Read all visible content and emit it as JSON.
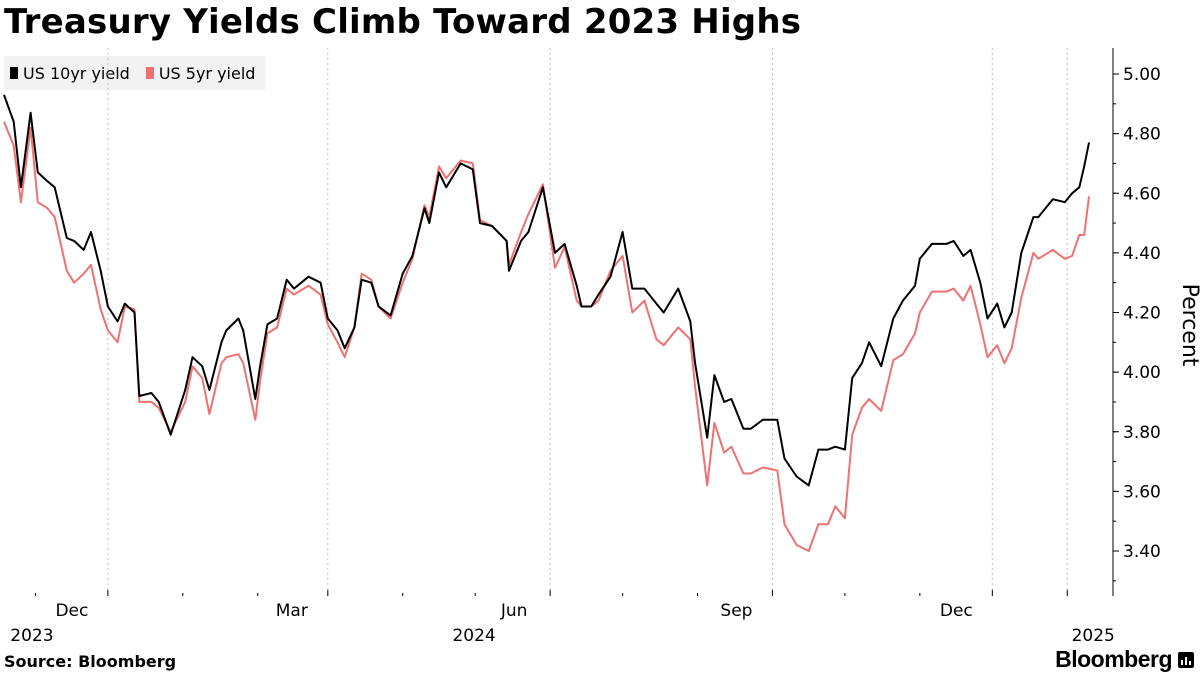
{
  "title": "Treasury Yields Climb Toward 2023 Highs",
  "source": "Source: Bloomberg",
  "brand": "Bloomberg",
  "brand_icon": "bloomberg-chart-icon",
  "colors": {
    "series_10yr": "#000000",
    "series_5yr": "#f07171",
    "grid": "#bfbfbf",
    "legend_bg": "#f2f2f2"
  },
  "chart_data": {
    "type": "line",
    "title": "Treasury Yields Climb Toward 2023 Highs",
    "xlabel": "",
    "ylabel": "Percent",
    "x_range": [
      "2023-10-19",
      "2025-01-10"
    ],
    "ylim": [
      3.25,
      5.1
    ],
    "y_ticks": [
      "5.00",
      "4.80",
      "4.60",
      "4.40",
      "4.20",
      "4.00",
      "3.80",
      "3.60",
      "3.40"
    ],
    "x_ticks": [
      {
        "date": "2023-12-01",
        "label": "Dec",
        "year": "2023"
      },
      {
        "date": "2024-03-01",
        "label": "Mar",
        "year": ""
      },
      {
        "date": "2024-06-01",
        "label": "Jun",
        "year": "2024"
      },
      {
        "date": "2024-09-01",
        "label": "Sep",
        "year": ""
      },
      {
        "date": "2024-12-01",
        "label": "Dec",
        "year": ""
      },
      {
        "date": "2025-01-01",
        "label": "",
        "year": "2025"
      }
    ],
    "grid": "vertical dotted",
    "legend": "top-left",
    "series": [
      {
        "name": "US 10yr yield",
        "points": [
          [
            "2023-10-19",
            4.93
          ],
          [
            "2023-10-23",
            4.84
          ],
          [
            "2023-10-26",
            4.62
          ],
          [
            "2023-10-30",
            4.87
          ],
          [
            "2023-11-02",
            4.67
          ],
          [
            "2023-11-06",
            4.64
          ],
          [
            "2023-11-09",
            4.62
          ],
          [
            "2023-11-14",
            4.45
          ],
          [
            "2023-11-17",
            4.44
          ],
          [
            "2023-11-21",
            4.41
          ],
          [
            "2023-11-24",
            4.47
          ],
          [
            "2023-11-28",
            4.34
          ],
          [
            "2023-12-01",
            4.22
          ],
          [
            "2023-12-05",
            4.17
          ],
          [
            "2023-12-08",
            4.23
          ],
          [
            "2023-12-12",
            4.2
          ],
          [
            "2023-12-14",
            3.92
          ],
          [
            "2023-12-19",
            3.93
          ],
          [
            "2023-12-22",
            3.9
          ],
          [
            "2023-12-27",
            3.79
          ],
          [
            "2024-01-02",
            3.94
          ],
          [
            "2024-01-05",
            4.05
          ],
          [
            "2024-01-09",
            4.02
          ],
          [
            "2024-01-12",
            3.94
          ],
          [
            "2024-01-17",
            4.1
          ],
          [
            "2024-01-19",
            4.14
          ],
          [
            "2024-01-24",
            4.18
          ],
          [
            "2024-01-26",
            4.14
          ],
          [
            "2024-01-31",
            3.91
          ],
          [
            "2024-02-02",
            4.02
          ],
          [
            "2024-02-05",
            4.16
          ],
          [
            "2024-02-09",
            4.18
          ],
          [
            "2024-02-13",
            4.31
          ],
          [
            "2024-02-16",
            4.28
          ],
          [
            "2024-02-22",
            4.32
          ],
          [
            "2024-02-27",
            4.3
          ],
          [
            "2024-03-01",
            4.18
          ],
          [
            "2024-03-05",
            4.14
          ],
          [
            "2024-03-08",
            4.08
          ],
          [
            "2024-03-12",
            4.15
          ],
          [
            "2024-03-15",
            4.31
          ],
          [
            "2024-03-19",
            4.3
          ],
          [
            "2024-03-22",
            4.22
          ],
          [
            "2024-03-27",
            4.19
          ],
          [
            "2024-04-01",
            4.33
          ],
          [
            "2024-04-05",
            4.39
          ],
          [
            "2024-04-10",
            4.55
          ],
          [
            "2024-04-12",
            4.5
          ],
          [
            "2024-04-16",
            4.67
          ],
          [
            "2024-04-19",
            4.62
          ],
          [
            "2024-04-25",
            4.7
          ],
          [
            "2024-04-30",
            4.68
          ],
          [
            "2024-05-03",
            4.5
          ],
          [
            "2024-05-08",
            4.49
          ],
          [
            "2024-05-14",
            4.44
          ],
          [
            "2024-05-15",
            4.34
          ],
          [
            "2024-05-20",
            4.44
          ],
          [
            "2024-05-23",
            4.47
          ],
          [
            "2024-05-29",
            4.62
          ],
          [
            "2024-06-03",
            4.4
          ],
          [
            "2024-06-07",
            4.43
          ],
          [
            "2024-06-12",
            4.29
          ],
          [
            "2024-06-14",
            4.22
          ],
          [
            "2024-06-18",
            4.22
          ],
          [
            "2024-06-21",
            4.26
          ],
          [
            "2024-06-26",
            4.32
          ],
          [
            "2024-07-01",
            4.47
          ],
          [
            "2024-07-05",
            4.28
          ],
          [
            "2024-07-10",
            4.28
          ],
          [
            "2024-07-15",
            4.23
          ],
          [
            "2024-07-18",
            4.2
          ],
          [
            "2024-07-24",
            4.28
          ],
          [
            "2024-07-29",
            4.17
          ],
          [
            "2024-07-31",
            4.03
          ],
          [
            "2024-08-05",
            3.78
          ],
          [
            "2024-08-08",
            3.99
          ],
          [
            "2024-08-12",
            3.9
          ],
          [
            "2024-08-15",
            3.91
          ],
          [
            "2024-08-20",
            3.81
          ],
          [
            "2024-08-23",
            3.81
          ],
          [
            "2024-08-28",
            3.84
          ],
          [
            "2024-09-03",
            3.84
          ],
          [
            "2024-09-06",
            3.71
          ],
          [
            "2024-09-11",
            3.65
          ],
          [
            "2024-09-16",
            3.62
          ],
          [
            "2024-09-20",
            3.74
          ],
          [
            "2024-09-24",
            3.74
          ],
          [
            "2024-09-27",
            3.75
          ],
          [
            "2024-10-01",
            3.74
          ],
          [
            "2024-10-04",
            3.98
          ],
          [
            "2024-10-08",
            4.03
          ],
          [
            "2024-10-11",
            4.1
          ],
          [
            "2024-10-16",
            4.02
          ],
          [
            "2024-10-21",
            4.18
          ],
          [
            "2024-10-25",
            4.24
          ],
          [
            "2024-10-30",
            4.29
          ],
          [
            "2024-11-01",
            4.38
          ],
          [
            "2024-11-06",
            4.43
          ],
          [
            "2024-11-12",
            4.43
          ],
          [
            "2024-11-15",
            4.44
          ],
          [
            "2024-11-19",
            4.39
          ],
          [
            "2024-11-22",
            4.41
          ],
          [
            "2024-11-26",
            4.3
          ],
          [
            "2024-11-29",
            4.18
          ],
          [
            "2024-12-03",
            4.23
          ],
          [
            "2024-12-06",
            4.15
          ],
          [
            "2024-12-09",
            4.2
          ],
          [
            "2024-12-13",
            4.4
          ],
          [
            "2024-12-18",
            4.52
          ],
          [
            "2024-12-20",
            4.52
          ],
          [
            "2024-12-26",
            4.58
          ],
          [
            "2024-12-31",
            4.57
          ],
          [
            "2025-01-03",
            4.6
          ],
          [
            "2025-01-06",
            4.62
          ],
          [
            "2025-01-08",
            4.69
          ],
          [
            "2025-01-10",
            4.77
          ]
        ]
      },
      {
        "name": "US 5yr yield",
        "points": [
          [
            "2023-10-19",
            4.84
          ],
          [
            "2023-10-23",
            4.76
          ],
          [
            "2023-10-26",
            4.57
          ],
          [
            "2023-10-30",
            4.82
          ],
          [
            "2023-11-02",
            4.57
          ],
          [
            "2023-11-06",
            4.55
          ],
          [
            "2023-11-09",
            4.52
          ],
          [
            "2023-11-14",
            4.34
          ],
          [
            "2023-11-17",
            4.3
          ],
          [
            "2023-11-21",
            4.33
          ],
          [
            "2023-11-24",
            4.36
          ],
          [
            "2023-11-28",
            4.21
          ],
          [
            "2023-12-01",
            4.14
          ],
          [
            "2023-12-05",
            4.1
          ],
          [
            "2023-12-08",
            4.22
          ],
          [
            "2023-12-12",
            4.21
          ],
          [
            "2023-12-14",
            3.9
          ],
          [
            "2023-12-19",
            3.9
          ],
          [
            "2023-12-22",
            3.88
          ],
          [
            "2023-12-27",
            3.8
          ],
          [
            "2024-01-02",
            3.9
          ],
          [
            "2024-01-05",
            4.02
          ],
          [
            "2024-01-09",
            3.98
          ],
          [
            "2024-01-12",
            3.86
          ],
          [
            "2024-01-17",
            4.03
          ],
          [
            "2024-01-19",
            4.05
          ],
          [
            "2024-01-24",
            4.06
          ],
          [
            "2024-01-26",
            4.03
          ],
          [
            "2024-01-31",
            3.84
          ],
          [
            "2024-02-02",
            3.97
          ],
          [
            "2024-02-05",
            4.13
          ],
          [
            "2024-02-09",
            4.15
          ],
          [
            "2024-02-13",
            4.28
          ],
          [
            "2024-02-16",
            4.26
          ],
          [
            "2024-02-22",
            4.29
          ],
          [
            "2024-02-27",
            4.26
          ],
          [
            "2024-03-01",
            4.16
          ],
          [
            "2024-03-05",
            4.1
          ],
          [
            "2024-03-08",
            4.05
          ],
          [
            "2024-03-12",
            4.15
          ],
          [
            "2024-03-15",
            4.33
          ],
          [
            "2024-03-19",
            4.31
          ],
          [
            "2024-03-22",
            4.22
          ],
          [
            "2024-03-27",
            4.18
          ],
          [
            "2024-04-01",
            4.3
          ],
          [
            "2024-04-05",
            4.38
          ],
          [
            "2024-04-10",
            4.56
          ],
          [
            "2024-04-12",
            4.52
          ],
          [
            "2024-04-16",
            4.69
          ],
          [
            "2024-04-19",
            4.65
          ],
          [
            "2024-04-25",
            4.71
          ],
          [
            "2024-04-30",
            4.7
          ],
          [
            "2024-05-03",
            4.51
          ],
          [
            "2024-05-08",
            4.49
          ],
          [
            "2024-05-14",
            4.44
          ],
          [
            "2024-05-15",
            4.36
          ],
          [
            "2024-05-20",
            4.47
          ],
          [
            "2024-05-23",
            4.53
          ],
          [
            "2024-05-29",
            4.63
          ],
          [
            "2024-06-03",
            4.35
          ],
          [
            "2024-06-07",
            4.42
          ],
          [
            "2024-06-12",
            4.24
          ],
          [
            "2024-06-14",
            4.22
          ],
          [
            "2024-06-18",
            4.22
          ],
          [
            "2024-06-21",
            4.24
          ],
          [
            "2024-06-26",
            4.34
          ],
          [
            "2024-07-01",
            4.39
          ],
          [
            "2024-07-05",
            4.2
          ],
          [
            "2024-07-10",
            4.24
          ],
          [
            "2024-07-15",
            4.11
          ],
          [
            "2024-07-18",
            4.09
          ],
          [
            "2024-07-24",
            4.15
          ],
          [
            "2024-07-29",
            4.11
          ],
          [
            "2024-07-31",
            3.95
          ],
          [
            "2024-08-05",
            3.62
          ],
          [
            "2024-08-08",
            3.83
          ],
          [
            "2024-08-12",
            3.73
          ],
          [
            "2024-08-15",
            3.75
          ],
          [
            "2024-08-20",
            3.66
          ],
          [
            "2024-08-23",
            3.66
          ],
          [
            "2024-08-28",
            3.68
          ],
          [
            "2024-09-03",
            3.67
          ],
          [
            "2024-09-06",
            3.49
          ],
          [
            "2024-09-11",
            3.42
          ],
          [
            "2024-09-16",
            3.4
          ],
          [
            "2024-09-20",
            3.49
          ],
          [
            "2024-09-24",
            3.49
          ],
          [
            "2024-09-27",
            3.55
          ],
          [
            "2024-10-01",
            3.51
          ],
          [
            "2024-10-04",
            3.79
          ],
          [
            "2024-10-08",
            3.88
          ],
          [
            "2024-10-11",
            3.91
          ],
          [
            "2024-10-16",
            3.87
          ],
          [
            "2024-10-21",
            4.04
          ],
          [
            "2024-10-25",
            4.06
          ],
          [
            "2024-10-30",
            4.13
          ],
          [
            "2024-11-01",
            4.2
          ],
          [
            "2024-11-06",
            4.27
          ],
          [
            "2024-11-12",
            4.27
          ],
          [
            "2024-11-15",
            4.28
          ],
          [
            "2024-11-19",
            4.24
          ],
          [
            "2024-11-22",
            4.29
          ],
          [
            "2024-11-26",
            4.16
          ],
          [
            "2024-11-29",
            4.05
          ],
          [
            "2024-12-03",
            4.09
          ],
          [
            "2024-12-06",
            4.03
          ],
          [
            "2024-12-09",
            4.08
          ],
          [
            "2024-12-13",
            4.25
          ],
          [
            "2024-12-18",
            4.4
          ],
          [
            "2024-12-20",
            4.38
          ],
          [
            "2024-12-26",
            4.41
          ],
          [
            "2024-12-31",
            4.38
          ],
          [
            "2025-01-03",
            4.39
          ],
          [
            "2025-01-06",
            4.46
          ],
          [
            "2025-01-08",
            4.46
          ],
          [
            "2025-01-10",
            4.59
          ]
        ]
      }
    ]
  }
}
